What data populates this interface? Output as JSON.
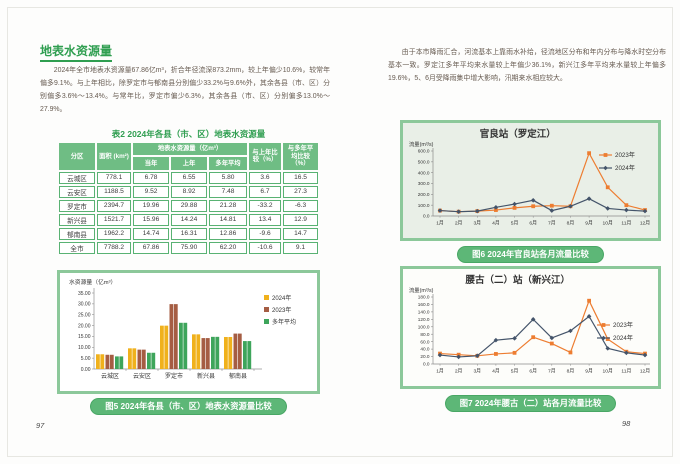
{
  "page_left": {
    "page_number": "97",
    "section_title": "地表水资源量",
    "paragraph": "2024年全市地表水资源量67.86亿m³，折合年径流深873.2mm，较上年偏少10.6%，较常年偏多9.1%。与上年相比，除罗定市与郁南县分别偏少33.2%与9.6%外，其余各县（市、区）分别偏多3.6%～13.4%。与常年比，罗定市偏少6.3%，其余各县（市、区）分别偏多13.0%～27.9%。",
    "table": {
      "title": "表2 2024年各县（市、区）地表水资源量",
      "headers": {
        "region": "分区",
        "area": "面积 (km²)",
        "group": "地表水资源量（亿m³）",
        "current": "当年",
        "previous": "上年",
        "avg": "多年平均",
        "vs_previous": "与上年比较（%）",
        "vs_avg": "与多年平均比较（%）"
      },
      "rows": [
        [
          "云城区",
          "778.1",
          "6.78",
          "6.55",
          "5.80",
          "3.6",
          "16.5"
        ],
        [
          "云安区",
          "1188.5",
          "9.52",
          "8.92",
          "7.48",
          "6.7",
          "27.3"
        ],
        [
          "罗定市",
          "2394.7",
          "19.96",
          "29.88",
          "21.28",
          "-33.2",
          "-6.3"
        ],
        [
          "新兴县",
          "1521.7",
          "15.96",
          "14.24",
          "14.81",
          "13.4",
          "12.9"
        ],
        [
          "郁南县",
          "1962.2",
          "14.74",
          "16.31",
          "12.86",
          "-9.6",
          "14.7"
        ],
        [
          "全市",
          "7788.2",
          "67.86",
          "75.90",
          "62.20",
          "-10.6",
          "9.1"
        ]
      ]
    },
    "figure5_caption": "图5 2024年各县（市、区）地表水资源量比较"
  },
  "page_right": {
    "page_number": "98",
    "paragraph": "由于本市降雨汇合，河流基本上靠雨水补给，径流地区分布和年内分布与降水时空分布基本一致。罗定江多年平均来水量较上年偏少36.1%，新兴江多年平均来水量较上年偏多19.6%，5、6月受降雨集中增大影响，汛期来水相应较大。",
    "figure6_caption": "图6 2024年官良站各月流量比较",
    "figure7_caption": "图7 2024年腰古（二）站各月流量比较"
  },
  "colors": {
    "accent_green": "#2f9e50",
    "table_header_green": "#6fbd84",
    "pill_green": "#5db777",
    "panel_border_green": "#8cc89a",
    "bar_2024": "#f0b11c",
    "bar_2023": "#a55d43",
    "bar_avg": "#3ea55b",
    "line_2023": "#ed7d31",
    "line_2024": "#44546a"
  },
  "chart_data": [
    {
      "type": "bar",
      "title": "图5 2024年各县（市、区）地表水资源量比较",
      "ylabel": "水资源量（亿m³）",
      "categories": [
        "云城区",
        "云安区",
        "罗定市",
        "新兴县",
        "郁南县"
      ],
      "series": [
        {
          "name": "2024年",
          "color": "#f0b11c",
          "values": [
            6.78,
            9.52,
            19.96,
            15.96,
            14.74
          ]
        },
        {
          "name": "2023年",
          "color": "#a55d43",
          "values": [
            6.55,
            8.92,
            29.88,
            14.24,
            16.31
          ]
        },
        {
          "name": "多年平均",
          "color": "#3ea55b",
          "values": [
            5.8,
            7.48,
            21.28,
            14.81,
            12.86
          ]
        }
      ],
      "ylim": [
        0,
        35
      ],
      "ytick": 5,
      "ydecimals": 2,
      "grid": false,
      "legend_position": "right",
      "legend_pos": [
        204,
        22
      ]
    },
    {
      "type": "line",
      "title": "官良站（罗定江）",
      "ylabel": "流量(m³/s)",
      "categories": [
        "1月",
        "2月",
        "3月",
        "4月",
        "5月",
        "6月",
        "7月",
        "8月",
        "9月",
        "10月",
        "11月",
        "12月"
      ],
      "series": [
        {
          "name": "2023年",
          "color": "#ed7d31",
          "marker": "square",
          "values": [
            50,
            40,
            45,
            55,
            75,
            90,
            95,
            90,
            580,
            265,
            100,
            55
          ]
        },
        {
          "name": "2024年",
          "color": "#44546a",
          "marker": "diamond",
          "values": [
            50,
            40,
            45,
            80,
            110,
            145,
            50,
            90,
            160,
            70,
            55,
            45
          ]
        }
      ],
      "ylim": [
        0,
        600
      ],
      "ytick": 100,
      "ydecimals": 1,
      "grid": false,
      "legend_position": "right",
      "legend_pos": [
        196,
        32
      ]
    },
    {
      "type": "line",
      "title": "腰古（二）站（新兴江）",
      "ylabel": "流量(m³/s)",
      "categories": [
        "1月",
        "2月",
        "3月",
        "4月",
        "5月",
        "6月",
        "7月",
        "8月",
        "9月",
        "10月",
        "11月",
        "12月"
      ],
      "series": [
        {
          "name": "2023年",
          "color": "#ed7d31",
          "marker": "square",
          "values": [
            28,
            25,
            22,
            27,
            30,
            72,
            55,
            31,
            170,
            67,
            33,
            28
          ]
        },
        {
          "name": "2024年",
          "color": "#44546a",
          "marker": "diamond",
          "values": [
            24,
            19,
            22,
            64,
            69,
            120,
            70,
            89,
            128,
            42,
            30,
            24
          ]
        }
      ],
      "ylim": [
        0,
        180
      ],
      "ytick": 20,
      "ydecimals": 1,
      "grid": false,
      "legend_position": "right",
      "legend_pos": [
        194,
        56
      ]
    }
  ]
}
